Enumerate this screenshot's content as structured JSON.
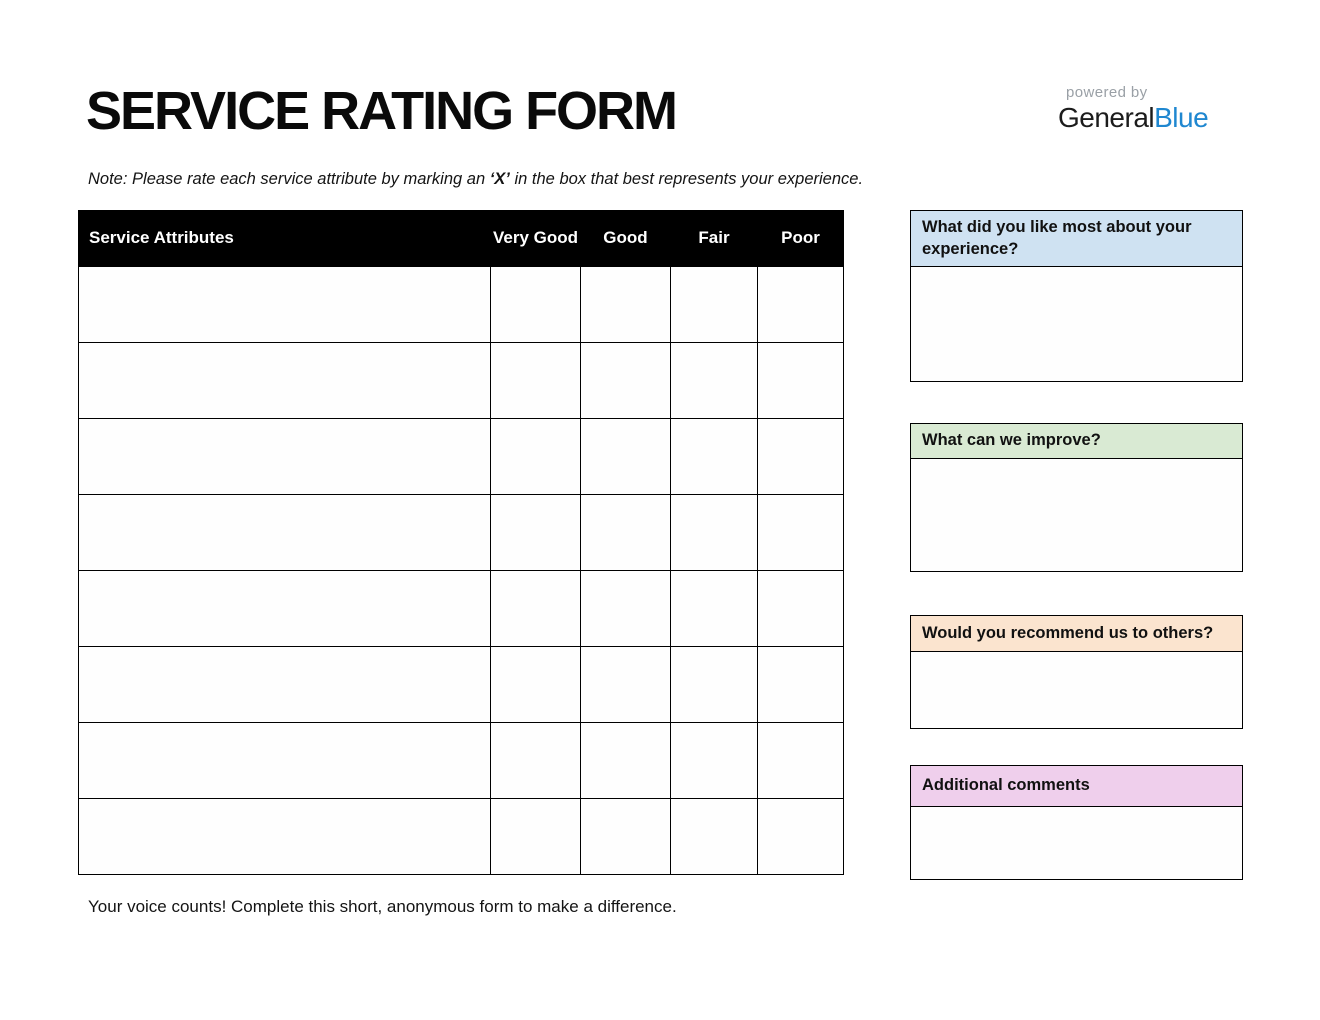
{
  "header": {
    "title": "SERVICE RATING FORM"
  },
  "logo": {
    "powered_by": "powered by",
    "brand_black": "General",
    "brand_blue": "Blue",
    "brand_blue_color": "#1f87d0"
  },
  "note": {
    "prefix": "Note: Please rate each service attribute by marking an ",
    "marker": "‘X’",
    "suffix": " in the box that best represents your experience."
  },
  "table": {
    "columns": [
      "Service Attributes",
      "Very Good",
      "Good",
      "Fair",
      "Poor"
    ],
    "row_count": 8,
    "header_bg": "#000000",
    "header_text_color": "#ffffff"
  },
  "side_panels": [
    {
      "title": "What did you like most about your experience?",
      "color": "#cfe2f2"
    },
    {
      "title": "What can we improve?",
      "color": "#d9ead3"
    },
    {
      "title": "Would you recommend us to others?",
      "color": "#fbe4cf"
    },
    {
      "title": "Additional comments",
      "color": "#efcfec"
    }
  ],
  "footer": {
    "text": "Your voice counts! Complete this short, anonymous form to make a difference."
  }
}
